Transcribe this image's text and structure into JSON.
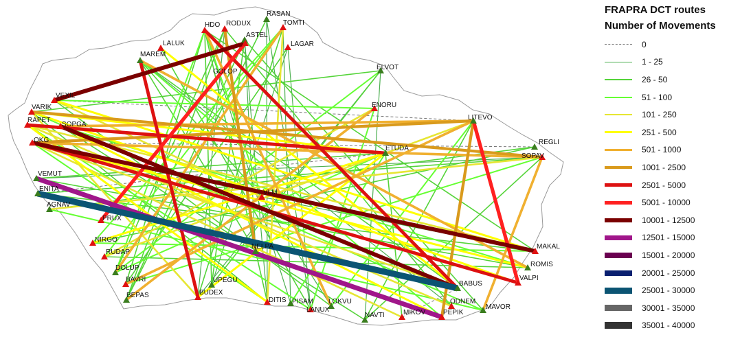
{
  "legend": {
    "title": "FRAPRA DCT routes",
    "subtitle": "Number of Movements",
    "classes": [
      {
        "label": "0",
        "color": "#777777",
        "dashed": true
      },
      {
        "label": "1 - 25",
        "color": "#4caf50"
      },
      {
        "label": "26 - 50",
        "color": "#55d43a"
      },
      {
        "label": "51 - 100",
        "color": "#66ff33"
      },
      {
        "label": "101 - 250",
        "color": "#e6e633"
      },
      {
        "label": "251 - 500",
        "color": "#ffff00"
      },
      {
        "label": "501 - 1000",
        "color": "#f0b030"
      },
      {
        "label": "1001 - 2500",
        "color": "#d99a1c"
      },
      {
        "label": "2501 - 5000",
        "color": "#dd1111"
      },
      {
        "label": "5001 - 10000",
        "color": "#ff2020"
      },
      {
        "label": "10001 - 12500",
        "color": "#7a0000"
      },
      {
        "label": "12501 - 15000",
        "color": "#a0168a"
      },
      {
        "label": "15001 - 20000",
        "color": "#6a0050"
      },
      {
        "label": "20001 - 25000",
        "color": "#0a2070"
      },
      {
        "label": "25001 - 30000",
        "color": "#0b5473"
      },
      {
        "label": "30001 - 35000",
        "color": "#666666"
      },
      {
        "label": "35001 - 40000",
        "color": "#333333"
      }
    ]
  },
  "waypoints": [
    {
      "name": "RASAN",
      "type": "green"
    },
    {
      "name": "HDO",
      "type": "red"
    },
    {
      "name": "RODUX",
      "type": "red"
    },
    {
      "name": "TOMTI",
      "type": "red"
    },
    {
      "name": "ASTEL",
      "type": "green"
    },
    {
      "name": "LALUK",
      "type": "red"
    },
    {
      "name": "LAGAR",
      "type": "red"
    },
    {
      "name": "MAREM",
      "type": "green"
    },
    {
      "name": "GOLOP",
      "type": "red"
    },
    {
      "name": "ELVOT",
      "type": "green"
    },
    {
      "name": "VEXIL",
      "type": "red"
    },
    {
      "name": "ENORU",
      "type": "red"
    },
    {
      "name": "VARIK",
      "type": "red"
    },
    {
      "name": "RAPET",
      "type": "red"
    },
    {
      "name": "SOPGA",
      "type": "red"
    },
    {
      "name": "OKG",
      "type": "red"
    },
    {
      "name": "LITEVO",
      "type": "green"
    },
    {
      "name": "REGLI",
      "type": "green"
    },
    {
      "name": "SOPAV",
      "type": "red"
    },
    {
      "name": "ETUDA",
      "type": "green"
    },
    {
      "name": "VEMUT",
      "type": "green"
    },
    {
      "name": "ENITA",
      "type": "green"
    },
    {
      "name": "AGNAV",
      "type": "green"
    },
    {
      "name": "VLM",
      "type": "red"
    },
    {
      "name": "PRUX",
      "type": "red"
    },
    {
      "name": "NIRGO",
      "type": "red"
    },
    {
      "name": "RUDAP",
      "type": "red"
    },
    {
      "name": "NELPA",
      "type": "green"
    },
    {
      "name": "MAKAL",
      "type": "red"
    },
    {
      "name": "ROMIS",
      "type": "green"
    },
    {
      "name": "DOLUP",
      "type": "green"
    },
    {
      "name": "BAVRI",
      "type": "red"
    },
    {
      "name": "UPEGU",
      "type": "green"
    },
    {
      "name": "BUDEX",
      "type": "red"
    },
    {
      "name": "BEPAS",
      "type": "green"
    },
    {
      "name": "DITIS",
      "type": "red"
    },
    {
      "name": "PISAM",
      "type": "green"
    },
    {
      "name": "LOKVU",
      "type": "green"
    },
    {
      "name": "LANUX",
      "type": "red"
    },
    {
      "name": "BABUS",
      "type": "green"
    },
    {
      "name": "VALPI",
      "type": "red"
    },
    {
      "name": "ODNEM",
      "type": "red"
    },
    {
      "name": "MAVOR",
      "type": "green"
    },
    {
      "name": "PEPIK",
      "type": "red"
    },
    {
      "name": "MIKOV",
      "type": "red"
    },
    {
      "name": "NAVTI",
      "type": "green"
    }
  ],
  "routes": [
    {
      "from": "ENITA",
      "to": "BABUS",
      "class": 14
    },
    {
      "from": "VEMUT",
      "to": "PEPIK",
      "class": 11
    },
    {
      "from": "OKG",
      "to": "MAKAL",
      "class": 10
    },
    {
      "from": "SOPGA",
      "to": "BABUS",
      "class": 10
    },
    {
      "from": "VEXIL",
      "to": "GOLOP",
      "class": 10
    },
    {
      "from": "MAREM",
      "to": "BUDEX",
      "class": 8
    },
    {
      "from": "PRUX",
      "to": "GOLOP",
      "class": 9
    },
    {
      "from": "LITEVO",
      "to": "VALPI",
      "class": 9
    },
    {
      "from": "RAPET",
      "to": "ETUDA",
      "class": 8
    },
    {
      "from": "HDO",
      "to": "BABUS",
      "class": 8
    },
    {
      "from": "OKG",
      "to": "VALPI",
      "class": 8
    },
    {
      "from": "RODUX",
      "to": "NELPA",
      "class": 7
    },
    {
      "from": "OKG",
      "to": "LITEVO",
      "class": 7
    },
    {
      "from": "VARIK",
      "to": "SOPAV",
      "class": 7
    },
    {
      "from": "SOPGA",
      "to": "LITEVO",
      "class": 6
    },
    {
      "from": "MAREM",
      "to": "ROMIS",
      "class": 6
    },
    {
      "from": "VEXIL",
      "to": "MAKAL",
      "class": 5
    },
    {
      "from": "BAVRI",
      "to": "LITEVO",
      "class": 6
    },
    {
      "from": "LITEVO",
      "to": "PEPIK",
      "class": 7
    },
    {
      "from": "DOLUP",
      "to": "TOMTI",
      "class": 6
    },
    {
      "from": "ENORU",
      "to": "BEPAS",
      "class": 6
    },
    {
      "from": "SOPAV",
      "to": "MAVOR",
      "class": 6
    },
    {
      "from": "HDO",
      "to": "LOKVU",
      "class": 6
    },
    {
      "from": "RAPET",
      "to": "DITIS",
      "class": 5
    },
    {
      "from": "OKG",
      "to": "ROMIS",
      "class": 5
    },
    {
      "from": "VARIK",
      "to": "VALPI",
      "class": 5
    },
    {
      "from": "LALUK",
      "to": "BABUS",
      "class": 5
    },
    {
      "from": "SOPGA",
      "to": "PEPIK",
      "class": 5
    },
    {
      "from": "TOMTI",
      "to": "DITIS",
      "class": 4
    },
    {
      "from": "BUDEX",
      "to": "ETUDA",
      "class": 5
    },
    {
      "from": "NIRGO",
      "to": "ETUDA",
      "class": 5
    },
    {
      "from": "OKG",
      "to": "SOPAV",
      "class": 6
    },
    {
      "from": "AGNAV",
      "to": "SOPAV",
      "class": 4
    },
    {
      "from": "RUDAP",
      "to": "LITEVO",
      "class": 4
    },
    {
      "from": "VARIK",
      "to": "ETUDA",
      "class": 5
    },
    {
      "from": "HDO",
      "to": "BAVRI",
      "class": 2
    },
    {
      "from": "HDO",
      "to": "DITIS",
      "class": 2
    },
    {
      "from": "HDO",
      "to": "PISAM",
      "class": 1
    },
    {
      "from": "HDO",
      "to": "UPEGU",
      "class": 2
    },
    {
      "from": "HDO",
      "to": "MAKAL",
      "class": 2
    },
    {
      "from": "HDO",
      "to": "VLM",
      "class": 3
    },
    {
      "from": "RODUX",
      "to": "DOLUP",
      "class": 2
    },
    {
      "from": "RODUX",
      "to": "BUDEX",
      "class": 1
    },
    {
      "from": "RODUX",
      "to": "ODNEM",
      "class": 2
    },
    {
      "from": "RASAN",
      "to": "LANUX",
      "class": 1
    },
    {
      "from": "RASAN",
      "to": "BEPAS",
      "class": 2
    },
    {
      "from": "RASAN",
      "to": "DITIS",
      "class": 1
    },
    {
      "from": "TOMTI",
      "to": "BUDEX",
      "class": 2
    },
    {
      "from": "TOMTI",
      "to": "NIRGO",
      "class": 3
    },
    {
      "from": "TOMTI",
      "to": "RUDAP",
      "class": 3
    },
    {
      "from": "ASTEL",
      "to": "DITIS",
      "class": 1
    },
    {
      "from": "ASTEL",
      "to": "MAVOR",
      "class": 2
    },
    {
      "from": "ASTEL",
      "to": "BEPAS",
      "class": 2
    },
    {
      "from": "LAGAR",
      "to": "UPEGU",
      "class": 1
    },
    {
      "from": "LAGAR",
      "to": "BAVRI",
      "class": 2
    },
    {
      "from": "LALUK",
      "to": "LANUX",
      "class": 2
    },
    {
      "from": "ELVOT",
      "to": "UPEGU",
      "class": 2
    },
    {
      "from": "ELVOT",
      "to": "BUDEX",
      "class": 1
    },
    {
      "from": "ELVOT",
      "to": "DOLUP",
      "class": 3
    },
    {
      "from": "ELVOT",
      "to": "VARIK",
      "class": 2
    },
    {
      "from": "ENORU",
      "to": "LANUX",
      "class": 3
    },
    {
      "from": "ENORU",
      "to": "RUDAP",
      "class": 4
    },
    {
      "from": "VEXIL",
      "to": "ENORU",
      "class": 3
    },
    {
      "from": "VEXIL",
      "to": "LOKVU",
      "class": 2
    },
    {
      "from": "VARIK",
      "to": "MAVOR",
      "class": 3
    },
    {
      "from": "VARIK",
      "to": "DITIS",
      "class": 2
    },
    {
      "from": "RAPET",
      "to": "MAKAL",
      "class": 4
    },
    {
      "from": "RAPET",
      "to": "LANUX",
      "class": 3
    },
    {
      "from": "SOPGA",
      "to": "ROMIS",
      "class": 3
    },
    {
      "from": "SOPGA",
      "to": "NAVTI",
      "class": 2
    },
    {
      "from": "OKG",
      "to": "BABUS",
      "class": 4
    },
    {
      "from": "OKG",
      "to": "DITIS",
      "class": 3
    },
    {
      "from": "REGLI",
      "to": "AGNAV",
      "class": 2
    },
    {
      "from": "REGLI",
      "to": "NIRGO",
      "class": 2
    },
    {
      "from": "SOPAV",
      "to": "BAVRI",
      "class": 3
    },
    {
      "from": "SOPAV",
      "to": "NAVTI",
      "class": 2
    },
    {
      "from": "SOPAV",
      "to": "ENITA",
      "class": 2
    },
    {
      "from": "SOPAV",
      "to": "VEMUT",
      "class": 1
    },
    {
      "from": "ETUDA",
      "to": "VEMUT",
      "class": 2
    },
    {
      "from": "ETUDA",
      "to": "DOLUP",
      "class": 3
    },
    {
      "from": "ETUDA",
      "to": "PISAM",
      "class": 3
    },
    {
      "from": "ETUDA",
      "to": "MIKOV",
      "class": 2
    },
    {
      "from": "LITEVO",
      "to": "NAVTI",
      "class": 2
    },
    {
      "from": "LITEVO",
      "to": "LOKVU",
      "class": 3
    },
    {
      "from": "VLM",
      "to": "MAKAL",
      "class": 1
    },
    {
      "from": "VLM",
      "to": "LOKVU",
      "class": 1
    },
    {
      "from": "VLM",
      "to": "MAREM",
      "class": 2
    },
    {
      "from": "VLM",
      "to": "VEXIL",
      "class": 4
    },
    {
      "from": "NELPA",
      "to": "MAREM",
      "class": 2
    },
    {
      "from": "NELPA",
      "to": "ASTEL",
      "class": 1
    },
    {
      "from": "MAKAL",
      "to": "ENITA",
      "class": 2
    },
    {
      "from": "MAKAL",
      "to": "NIRGO",
      "class": 3
    },
    {
      "from": "ROMIS",
      "to": "VEMUT",
      "class": 2
    },
    {
      "from": "ROMIS",
      "to": "RUDAP",
      "class": 2
    },
    {
      "from": "BUDEX",
      "to": "VARIK",
      "class": 4
    },
    {
      "from": "BABUS",
      "to": "MAREM",
      "class": 2
    },
    {
      "from": "MAVOR",
      "to": "AGNAV",
      "class": 3
    },
    {
      "from": "PEPIK",
      "to": "MAREM",
      "class": 3
    },
    {
      "from": "MIKOV",
      "to": "OKG",
      "class": 4
    },
    {
      "from": "NAVTI",
      "to": "ELVOT",
      "class": 1
    },
    {
      "from": "ODNEM",
      "to": "RAPET",
      "class": 4
    },
    {
      "from": "LANUX",
      "to": "LAGAR",
      "class": 1
    },
    {
      "from": "PISAM",
      "to": "TOMTI",
      "class": 1
    },
    {
      "from": "UPEGU",
      "to": "ASTEL",
      "class": 2
    },
    {
      "from": "BEPAS",
      "to": "RODUX",
      "class": 2
    },
    {
      "from": "DOLUP",
      "to": "HDO",
      "class": 3
    },
    {
      "from": "MAREM",
      "to": "ODNEM",
      "class": 1
    },
    {
      "from": "VEXIL",
      "to": "LITEVO",
      "class": 0
    },
    {
      "from": "OKG",
      "to": "REGLI",
      "class": 0
    },
    {
      "from": "HDO",
      "to": "VLM",
      "class": 0
    },
    {
      "from": "NIRGO",
      "to": "MAKAL",
      "class": 0
    },
    {
      "from": "ENITA",
      "to": "ETUDA",
      "class": 0
    },
    {
      "from": "RUDAP",
      "to": "ROMIS",
      "class": 0
    },
    {
      "from": "MIKOV",
      "to": "BABUS",
      "class": 0
    }
  ]
}
